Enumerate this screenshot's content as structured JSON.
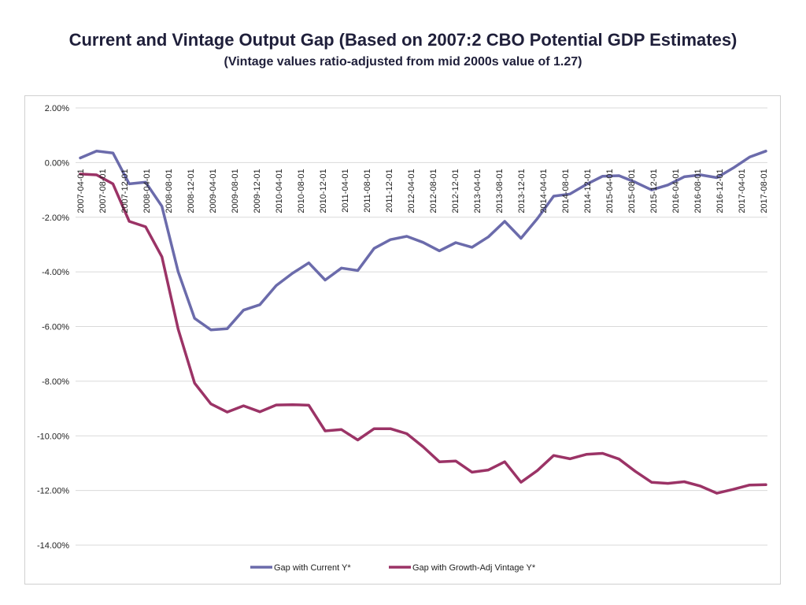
{
  "title": "Current and Vintage Output Gap (Based on 2007:2 CBO Potential GDP Estimates)",
  "subtitle": "(Vintage values ratio-adjusted from mid 2000s value of 1.27)",
  "colors": {
    "series_current": "#6b6bab",
    "series_vintage": "#9b3366",
    "grid": "#d9d9d9"
  },
  "chart_data": {
    "type": "line",
    "title": "Current and Vintage Output Gap (Based on 2007:2 CBO Potential GDP Estimates)",
    "xlabel": "",
    "ylabel": "",
    "ylim": [
      -14,
      2
    ],
    "ytick_step": 2,
    "y_tick_labels": [
      "2.00%",
      "0.00%",
      "-2.00%",
      "-4.00%",
      "-6.00%",
      "-8.00%",
      "-10.00%",
      "-12.00%",
      "-14.00%"
    ],
    "x_tick_labels": [
      "2007-04-01",
      "2007-08-01",
      "2007-12-01",
      "2008-04-01",
      "2008-08-01",
      "2008-12-01",
      "2009-04-01",
      "2009-08-01",
      "2009-12-01",
      "2010-04-01",
      "2010-08-01",
      "2010-12-01",
      "2011-04-01",
      "2011-08-01",
      "2011-12-01",
      "2012-04-01",
      "2012-08-01",
      "2012-12-01",
      "2013-04-01",
      "2013-08-01",
      "2013-12-01",
      "2014-04-01",
      "2014-08-01",
      "2014-12-01",
      "2015-04-01",
      "2015-08-01",
      "2015-12-01",
      "2016-04-01",
      "2016-08-01",
      "2016-12-01",
      "2017-04-01",
      "2017-08-01"
    ],
    "x_start": "2007-04-01",
    "x_step_months": 2,
    "legend_position": "bottom",
    "series": [
      {
        "name": "Gap with Current Y*",
        "values": [
          0.17,
          0.42,
          0.35,
          -0.78,
          -0.72,
          -1.6,
          -4.0,
          -5.7,
          -6.12,
          -6.08,
          -5.4,
          -5.2,
          -4.5,
          -4.05,
          -3.67,
          -4.3,
          -3.86,
          -3.95,
          -3.14,
          -2.82,
          -2.7,
          -2.92,
          -3.23,
          -2.93,
          -3.1,
          -2.72,
          -2.15,
          -2.77,
          -2.05,
          -1.23,
          -1.15,
          -0.8,
          -0.5,
          -0.48,
          -0.72,
          -1.0,
          -0.82,
          -0.52,
          -0.45,
          -0.55,
          -0.2,
          0.2,
          0.42
        ]
      },
      {
        "name": "Gap with Growth-Adj Vintage Y*",
        "values": [
          -0.42,
          -0.45,
          -0.78,
          -2.15,
          -2.35,
          -3.45,
          -6.1,
          -8.07,
          -8.83,
          -9.13,
          -8.9,
          -9.12,
          -8.87,
          -8.86,
          -8.88,
          -9.82,
          -9.77,
          -10.15,
          -9.74,
          -9.74,
          -9.92,
          -10.4,
          -10.95,
          -10.92,
          -11.33,
          -11.25,
          -10.95,
          -11.7,
          -11.27,
          -10.72,
          -10.84,
          -10.68,
          -10.64,
          -10.85,
          -11.3,
          -11.7,
          -11.74,
          -11.68,
          -11.84,
          -12.1,
          -11.96,
          -11.8,
          -11.79
        ]
      }
    ]
  }
}
